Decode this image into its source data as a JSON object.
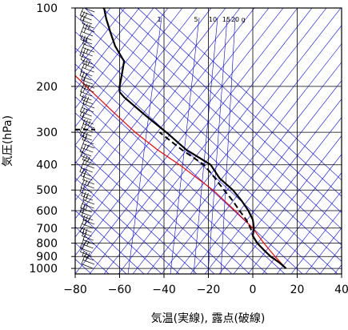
{
  "chart_data": {
    "type": "line",
    "xlabel": "気温(実線), 露点(破線)",
    "ylabel": "気圧(hPa)",
    "xlim": [
      -80,
      40
    ],
    "ylim": [
      1050,
      100
    ],
    "y_scale": "log",
    "x_ticks": [
      -80,
      -60,
      -40,
      -20,
      0,
      20,
      40
    ],
    "y_ticks": [
      100,
      200,
      300,
      400,
      500,
      600,
      700,
      800,
      900,
      1000
    ],
    "x_tick_labels": [
      "−80",
      "−60",
      "−40",
      "−20",
      "0",
      "20",
      "40"
    ],
    "y_tick_labels": [
      "100",
      "200",
      "300",
      "400",
      "500",
      "600",
      "700",
      "800",
      "900",
      "1000"
    ],
    "grid": true,
    "mixing_ratio_labels": [
      "1",
      "5",
      "10",
      "15",
      "20",
      "g"
    ],
    "colors": {
      "temperature": "#000000",
      "dewpoint": "#000000",
      "parcel": "#ff0000",
      "background_lines": "#0000ff",
      "grid": "#000000"
    },
    "series": [
      {
        "style": "solid",
        "points": [
          [
            15,
            1000
          ],
          [
            12,
            950
          ],
          [
            8,
            900
          ],
          [
            5,
            850
          ],
          [
            2,
            800
          ],
          [
            0,
            750
          ],
          [
            0.5,
            700
          ],
          [
            0,
            650
          ],
          [
            -2,
            600
          ],
          [
            -5,
            550
          ],
          [
            -9,
            500
          ],
          [
            -15,
            450
          ],
          [
            -19,
            400
          ],
          [
            -30,
            350
          ],
          [
            -39,
            300
          ],
          [
            -48,
            260
          ],
          [
            -58,
            220
          ],
          [
            -60,
            210
          ],
          [
            -60,
            200
          ],
          [
            -59,
            180
          ],
          [
            -58,
            160
          ],
          [
            -62,
            140
          ],
          [
            -64,
            125
          ],
          [
            -66,
            110
          ],
          [
            -67,
            100
          ]
        ]
      },
      {
        "style": "dashed",
        "points": [
          [
            15,
            1000
          ],
          [
            12,
            950
          ],
          [
            8,
            900
          ],
          [
            5,
            850
          ],
          [
            2,
            800
          ],
          [
            0,
            750
          ],
          [
            -1,
            700
          ],
          [
            -3,
            650
          ],
          [
            -6,
            600
          ],
          [
            -9,
            550
          ],
          [
            -13,
            500
          ],
          [
            -17,
            450
          ],
          [
            -22,
            400
          ],
          [
            -32,
            350
          ],
          [
            -42,
            300
          ]
        ]
      },
      {
        "style": "parcel",
        "points": [
          [
            15,
            1000
          ],
          [
            10,
            900
          ],
          [
            5,
            800
          ],
          [
            0,
            700
          ],
          [
            -8,
            600
          ],
          [
            -18,
            500
          ],
          [
            -33,
            400
          ],
          [
            -43,
            350
          ],
          [
            -53,
            300
          ],
          [
            -63,
            250
          ],
          [
            -75,
            200
          ],
          [
            -82,
            175
          ]
        ]
      }
    ],
    "annotations": [
      {
        "type": "horizontal_dashed_line",
        "y": 293,
        "x_range": [
          -80,
          -71
        ]
      }
    ],
    "wind_barbs": {
      "x_position": -72,
      "count": 66,
      "pressure_range": [
        1000,
        100
      ],
      "direction": "westerly"
    }
  }
}
